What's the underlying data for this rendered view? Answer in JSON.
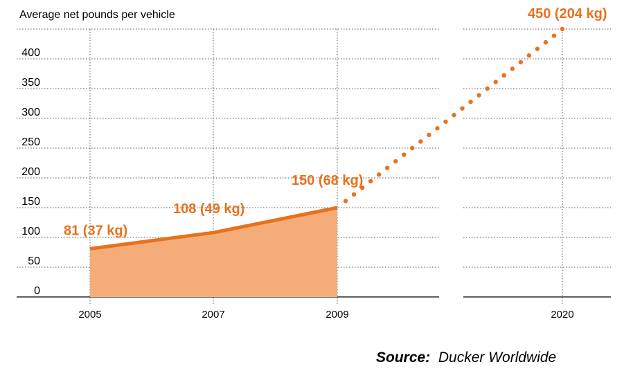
{
  "chart_data": {
    "type": "area",
    "ylabel": "Average net pounds per vehicle",
    "yticks": [
      0,
      50,
      100,
      150,
      200,
      250,
      300,
      350,
      400
    ],
    "ylim": [
      0,
      450
    ],
    "xticks": [
      "2005",
      "2007",
      "2009",
      "2020"
    ],
    "grid": true,
    "series": [
      {
        "style": "solid-area",
        "points": [
          {
            "x": "2005",
            "y": 81,
            "label": "81 (37 kg)"
          },
          {
            "x": "2007",
            "y": 108,
            "label": "108 (49 kg)"
          },
          {
            "x": "2009",
            "y": 150,
            "label": "150 (68 kg)"
          }
        ]
      },
      {
        "style": "dotted-projection",
        "points": [
          {
            "x": "2009",
            "y": 150
          },
          {
            "x": "2020",
            "y": 450,
            "label": "450 (204 kg)"
          }
        ]
      }
    ]
  },
  "source": {
    "prefix": "Source:",
    "name": "Ducker Worldwide"
  },
  "colors": {
    "line": "#e8711d",
    "area": "#f4ad78",
    "grid": "#555555",
    "axis": "#000000"
  }
}
